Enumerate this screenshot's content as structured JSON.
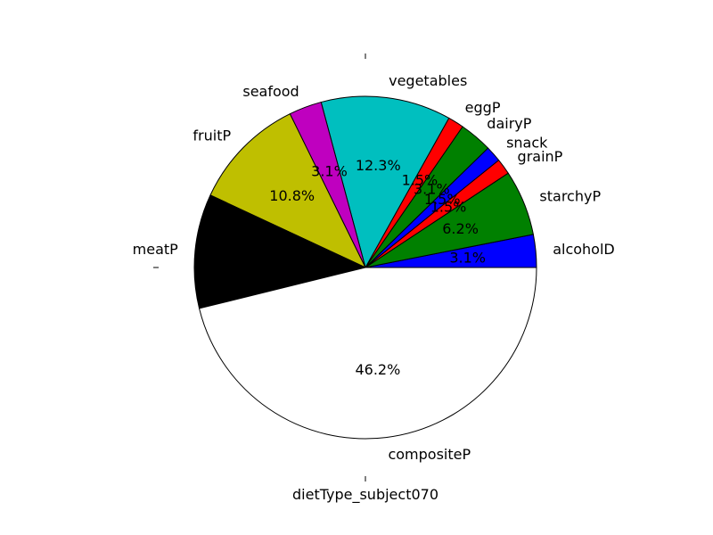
{
  "chart_data": {
    "type": "pie",
    "xlabel": "dietType_subject070",
    "slices": [
      {
        "label": "alcoholD",
        "pct_label": "3.1%",
        "value": 3.1,
        "color": "#0000ff"
      },
      {
        "label": "starchyP",
        "pct_label": "6.2%",
        "value": 6.2,
        "color": "#008000"
      },
      {
        "label": "grainP",
        "pct_label": "1.5%",
        "value": 1.5,
        "color": "#ff0000"
      },
      {
        "label": "snack",
        "pct_label": "1.5%",
        "value": 1.5,
        "color": "#0000ff"
      },
      {
        "label": "dairyP",
        "pct_label": "3.1%",
        "value": 3.1,
        "color": "#008000"
      },
      {
        "label": "eggP",
        "pct_label": "1.5%",
        "value": 1.5,
        "color": "#ff0000"
      },
      {
        "label": "vegetables",
        "pct_label": "12.3%",
        "value": 12.3,
        "color": "#00bfbf"
      },
      {
        "label": "seafood",
        "pct_label": "3.1%",
        "value": 3.1,
        "color": "#bf00bf"
      },
      {
        "label": "fruitP",
        "pct_label": "10.8%",
        "value": 10.8,
        "color": "#bfbf00"
      },
      {
        "label": "meatP",
        "pct_label": "10.8%",
        "value": 10.8,
        "color": "#000000"
      },
      {
        "label": "compositeP",
        "pct_label": "46.2%",
        "value": 46.2,
        "color": "#ffffff"
      }
    ]
  }
}
